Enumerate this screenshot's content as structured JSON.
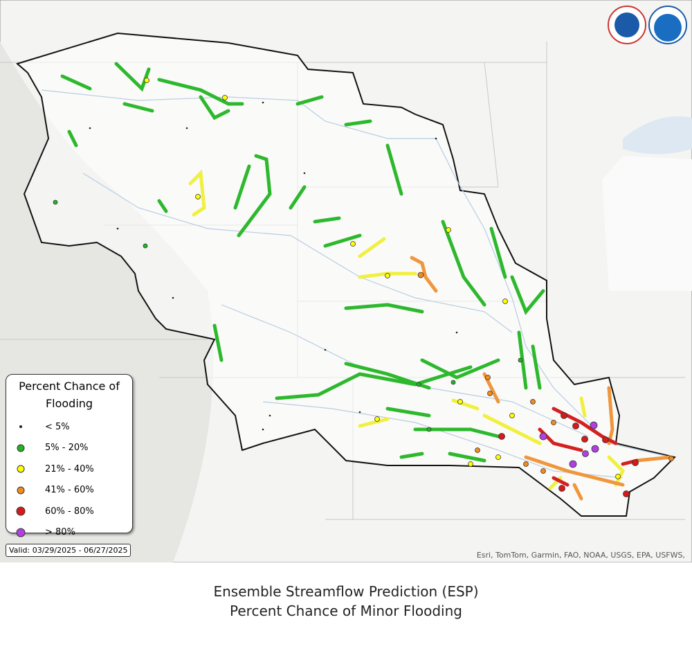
{
  "legend": {
    "title": "Percent Chance of Flooding",
    "items": [
      {
        "label": "< 5%",
        "color": "#222222",
        "size": 2
      },
      {
        "label": "5% - 20%",
        "color": "#22b522",
        "size": 5
      },
      {
        "label": "21% - 40%",
        "color": "#ffff00",
        "size": 5
      },
      {
        "label": "41% - 60%",
        "color": "#f08c1e",
        "size": 5
      },
      {
        "label": "60% - 80%",
        "color": "#d41a1a",
        "size": 6
      },
      {
        "label": "> 80%",
        "color": "#b040e0",
        "size": 6
      }
    ]
  },
  "valid": "Valid: 03/29/2025 - 06/27/2025",
  "attribution": "Esri, TomTom, Garmin, FAO, NOAA, USGS, EPA, USFWS,",
  "caption": [
    "Ensemble Streamflow Prediction (ESP)",
    "Percent Chance of Minor Flooding"
  ]
}
